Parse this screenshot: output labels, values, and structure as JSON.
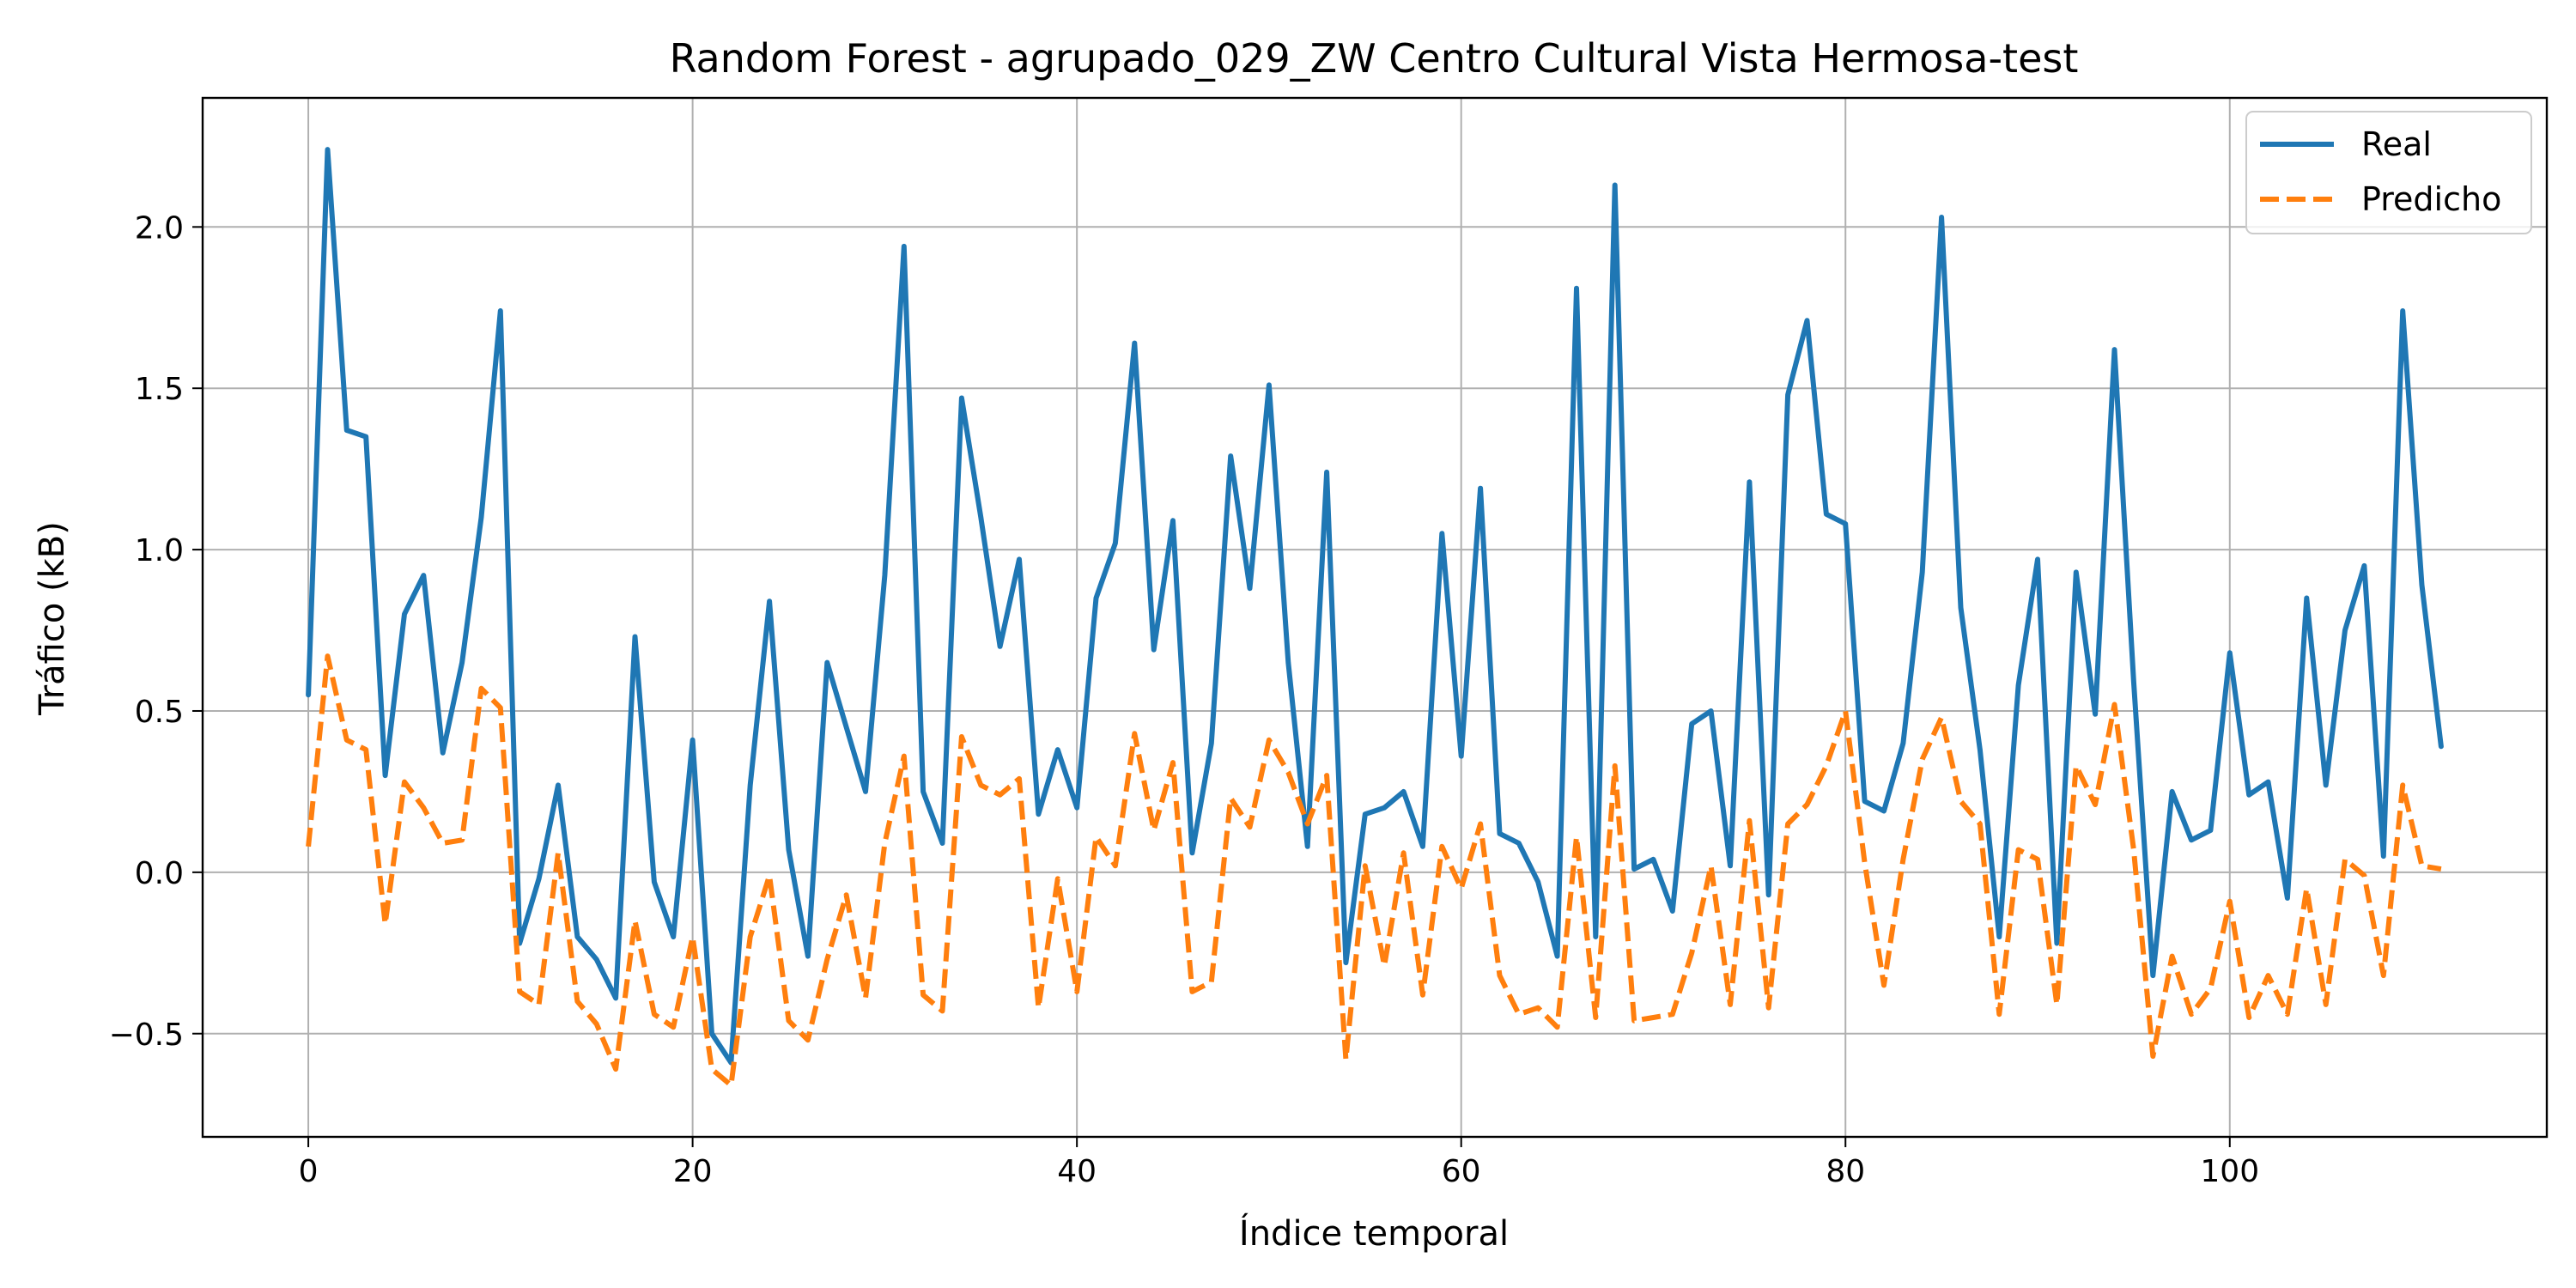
{
  "chart_data": {
    "type": "line",
    "title": "Random Forest - agrupado_029_ZW Centro Cultural Vista Hermosa-test",
    "xlabel": "Índice temporal",
    "ylabel": "Tráfico (kB)",
    "xlim": [
      -5.5,
      116.5
    ],
    "ylim": [
      -0.82,
      2.4
    ],
    "xticks": [
      0,
      20,
      40,
      60,
      80,
      100
    ],
    "xtick_labels": [
      "0",
      "20",
      "40",
      "60",
      "80",
      "100"
    ],
    "yticks": [
      -0.5,
      0.0,
      0.5,
      1.0,
      1.5,
      2.0
    ],
    "ytick_labels": [
      "−0.5",
      "0.0",
      "0.5",
      "1.0",
      "1.5",
      "2.0"
    ],
    "grid": true,
    "legend_position": "top-right",
    "series": [
      {
        "name": "Real",
        "color": "#1f77b4",
        "style": "solid",
        "values": [
          0.55,
          2.24,
          1.37,
          1.35,
          0.3,
          0.8,
          0.92,
          0.37,
          0.65,
          1.1,
          1.74,
          -0.22,
          -0.02,
          0.27,
          -0.2,
          -0.27,
          -0.39,
          0.73,
          -0.03,
          -0.2,
          0.41,
          -0.5,
          -0.59,
          0.27,
          0.84,
          0.07,
          -0.26,
          0.65,
          0.45,
          0.25,
          0.92,
          1.94,
          0.25,
          0.09,
          1.47,
          1.1,
          0.7,
          0.97,
          0.18,
          0.38,
          0.2,
          0.85,
          1.02,
          1.64,
          0.69,
          1.09,
          0.06,
          0.4,
          1.29,
          0.88,
          1.51,
          0.65,
          0.08,
          1.24,
          -0.28,
          0.18,
          0.2,
          0.25,
          0.08,
          1.05,
          0.36,
          1.19,
          0.12,
          0.09,
          -0.03,
          -0.26,
          1.81,
          -0.2,
          2.13,
          0.01,
          0.04,
          -0.12,
          0.46,
          0.5,
          0.02,
          1.21,
          -0.07,
          1.48,
          1.71,
          1.11,
          1.08,
          0.22,
          0.19,
          0.4,
          0.93,
          2.03,
          0.82,
          0.38,
          -0.2,
          0.58,
          0.97,
          -0.22,
          0.93,
          0.49,
          1.62,
          0.59,
          -0.32,
          0.25,
          0.1,
          0.13,
          0.68,
          0.24,
          0.28,
          -0.08,
          0.85,
          0.27,
          0.75,
          0.95,
          0.05,
          1.74,
          0.89,
          0.39
        ]
      },
      {
        "name": "Predicho",
        "color": "#ff7f0e",
        "style": "dashed",
        "values": [
          0.08,
          0.67,
          0.41,
          0.38,
          -0.16,
          0.28,
          0.2,
          0.09,
          0.1,
          0.57,
          0.51,
          -0.37,
          -0.41,
          0.06,
          -0.4,
          -0.47,
          -0.61,
          -0.15,
          -0.44,
          -0.48,
          -0.2,
          -0.61,
          -0.66,
          -0.2,
          -0.01,
          -0.46,
          -0.52,
          -0.27,
          -0.07,
          -0.39,
          0.09,
          0.36,
          -0.38,
          -0.43,
          0.42,
          0.27,
          0.24,
          0.29,
          -0.42,
          -0.02,
          -0.37,
          0.11,
          0.02,
          0.43,
          0.13,
          0.34,
          -0.37,
          -0.34,
          0.23,
          0.14,
          0.41,
          0.31,
          0.15,
          0.3,
          -0.58,
          0.02,
          -0.29,
          0.06,
          -0.38,
          0.08,
          -0.05,
          0.15,
          -0.32,
          -0.44,
          -0.42,
          -0.48,
          0.11,
          -0.45,
          0.33,
          -0.46,
          -0.45,
          -0.44,
          -0.25,
          0.02,
          -0.41,
          0.16,
          -0.42,
          0.15,
          0.21,
          0.33,
          0.5,
          0.03,
          -0.35,
          0.04,
          0.35,
          0.48,
          0.22,
          0.15,
          -0.44,
          0.07,
          0.04,
          -0.41,
          0.33,
          0.21,
          0.52,
          0.07,
          -0.57,
          -0.26,
          -0.44,
          -0.36,
          -0.09,
          -0.45,
          -0.32,
          -0.44,
          -0.05,
          -0.41,
          0.04,
          -0.01,
          -0.32,
          0.27,
          0.02,
          0.01
        ]
      }
    ]
  }
}
